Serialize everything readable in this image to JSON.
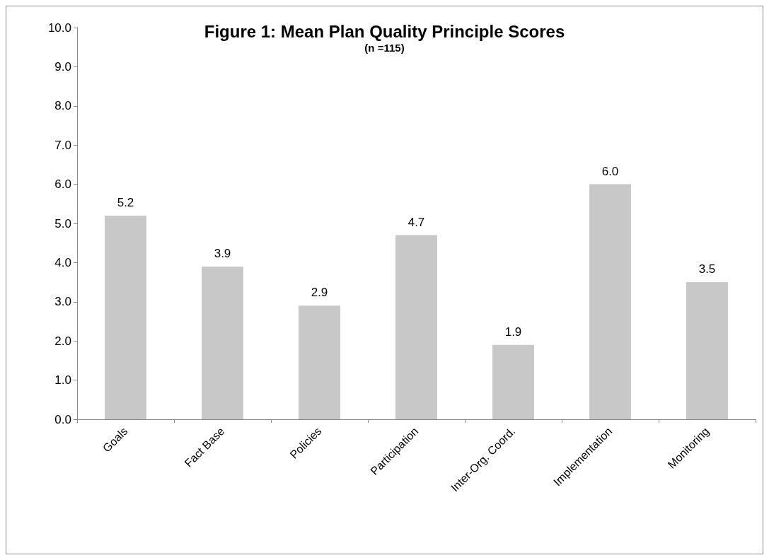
{
  "chart_data": {
    "type": "bar",
    "title": "Figure 1: Mean Plan Quality Principle Scores",
    "subtitle": "(n =115)",
    "categories": [
      "Goals",
      "Fact Base",
      "Policies",
      "Participation",
      "Inter-Org. Coord.",
      "Implementation",
      "Monitoring"
    ],
    "values": [
      5.2,
      3.9,
      2.9,
      4.7,
      1.9,
      6.0,
      3.5
    ],
    "value_labels": [
      "5.2",
      "3.9",
      "2.9",
      "4.7",
      "1.9",
      "6.0",
      "3.5"
    ],
    "color": "#c8c8c8",
    "ylim": [
      0,
      10
    ],
    "yticks": [
      {
        "value": 0,
        "label": "0.0"
      },
      {
        "value": 1,
        "label": "1.0"
      },
      {
        "value": 2,
        "label": "2.0"
      },
      {
        "value": 3,
        "label": "3.0"
      },
      {
        "value": 4,
        "label": "4.0"
      },
      {
        "value": 5,
        "label": "5.0"
      },
      {
        "value": 6,
        "label": "6.0"
      },
      {
        "value": 7,
        "label": "7.0"
      },
      {
        "value": 8,
        "label": "8.0"
      },
      {
        "value": 9,
        "label": "9.0"
      },
      {
        "value": 10,
        "label": "10.0"
      }
    ],
    "grid": false
  }
}
